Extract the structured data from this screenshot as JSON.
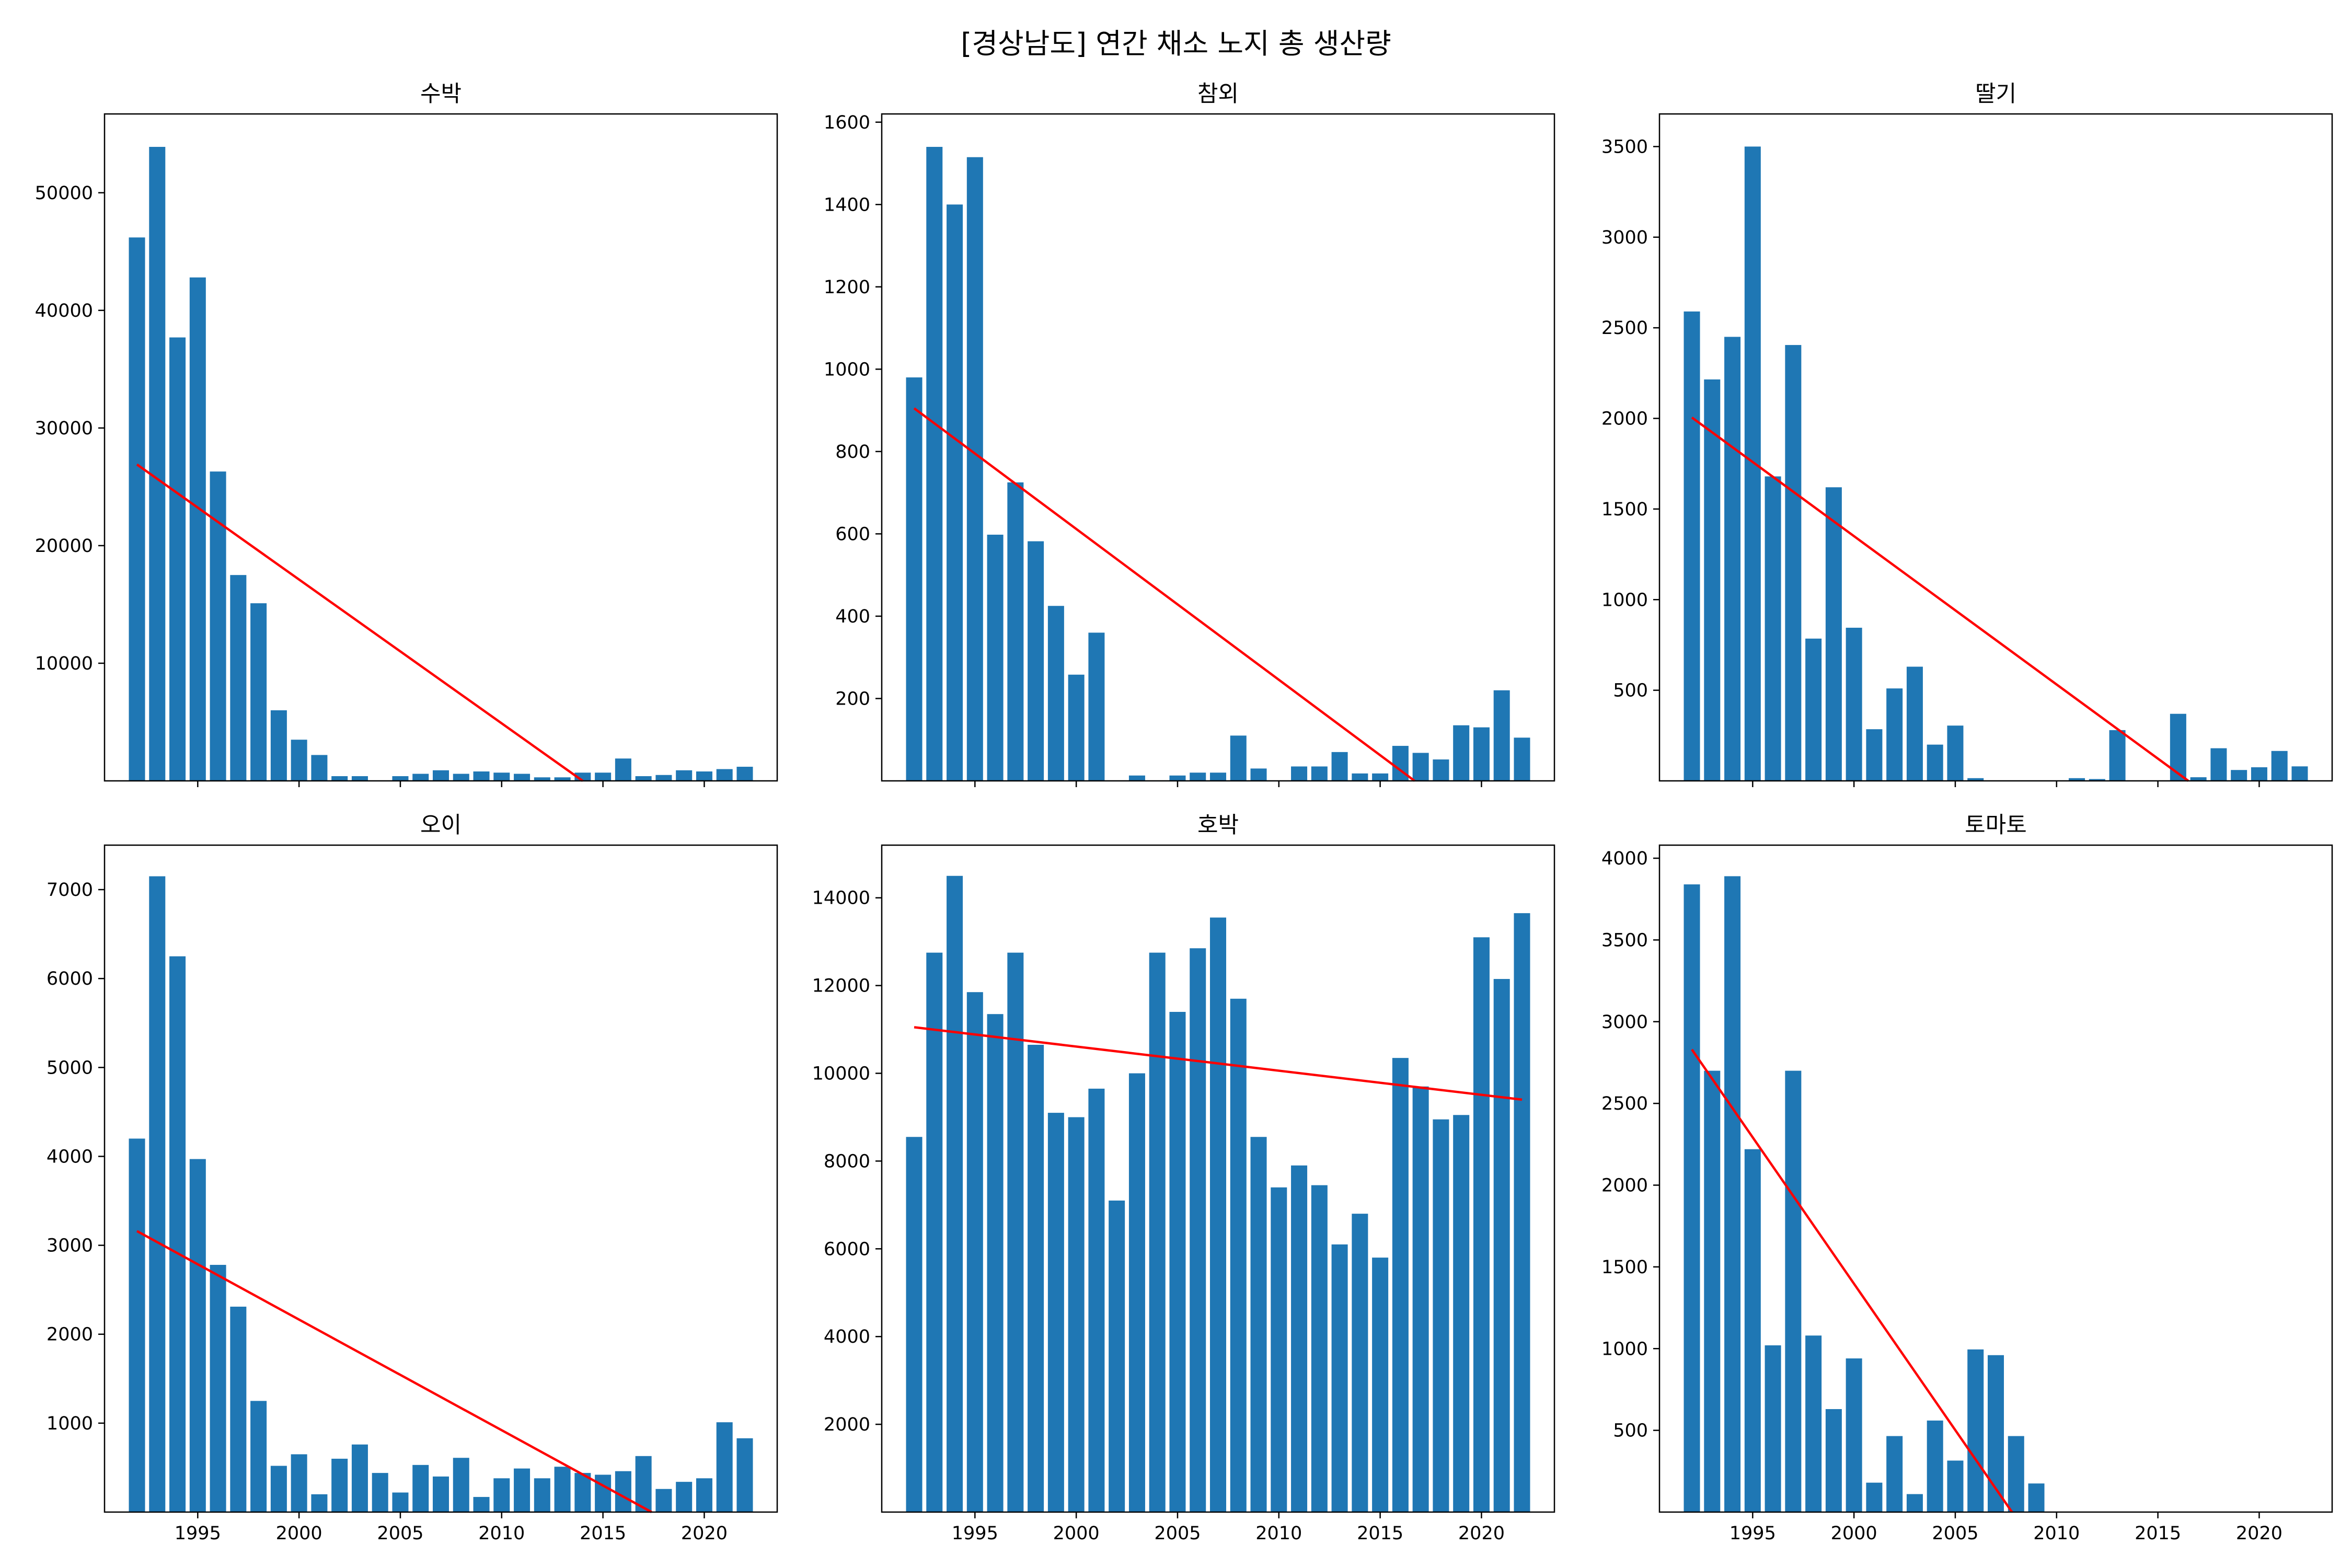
{
  "figure": {
    "title": "[경상남도] 연간 채소 노지 총 생산량"
  },
  "style": {
    "bar_color": "#1f77b4",
    "trend_color": "#ff0000",
    "axis_color": "#000000"
  },
  "chart_data": [
    {
      "type": "bar",
      "title": "수박",
      "x": [
        1992,
        1993,
        1994,
        1995,
        1996,
        1997,
        1998,
        1999,
        2000,
        2001,
        2002,
        2003,
        2004,
        2005,
        2006,
        2007,
        2008,
        2009,
        2010,
        2011,
        2012,
        2013,
        2014,
        2015,
        2016,
        2017,
        2018,
        2019,
        2020,
        2021,
        2022
      ],
      "values": [
        46200,
        53900,
        37700,
        42800,
        26300,
        17500,
        15100,
        6000,
        3500,
        2200,
        400,
        400,
        0,
        400,
        600,
        900,
        600,
        800,
        700,
        600,
        300,
        300,
        700,
        700,
        1900,
        400,
        500,
        900,
        800,
        1000,
        1200
      ],
      "trend": {
        "x": [
          1992,
          2014
        ],
        "y": [
          26900,
          0
        ]
      },
      "ylim": [
        0,
        56700
      ],
      "yticks": [
        10000,
        20000,
        30000,
        40000,
        50000
      ],
      "xticks": [
        1995,
        2000,
        2005,
        2010,
        2015,
        2020
      ],
      "xlim": [
        1990.4,
        2023.6
      ],
      "show_xtick_labels": false,
      "xlabel": "",
      "ylabel": "",
      "grid": false
    },
    {
      "type": "bar",
      "title": "참외",
      "x": [
        1992,
        1993,
        1994,
        1995,
        1996,
        1997,
        1998,
        1999,
        2000,
        2001,
        2002,
        2003,
        2004,
        2005,
        2006,
        2007,
        2008,
        2009,
        2010,
        2011,
        2012,
        2013,
        2014,
        2015,
        2016,
        2017,
        2018,
        2019,
        2020,
        2021,
        2022
      ],
      "values": [
        980,
        1540,
        1400,
        1515,
        598,
        725,
        582,
        425,
        258,
        360,
        0,
        13,
        0,
        13,
        20,
        20,
        110,
        30,
        0,
        35,
        35,
        70,
        18,
        18,
        85,
        68,
        52,
        135,
        130,
        220,
        105
      ],
      "trend": {
        "x": [
          1992,
          2016.7
        ],
        "y": [
          905,
          0
        ]
      },
      "ylim": [
        0,
        1620
      ],
      "yticks": [
        200,
        400,
        600,
        800,
        1000,
        1200,
        1400,
        1600
      ],
      "xticks": [
        1995,
        2000,
        2005,
        2010,
        2015,
        2020
      ],
      "xlim": [
        1990.4,
        2023.6
      ],
      "show_xtick_labels": false,
      "xlabel": "",
      "ylabel": "",
      "grid": false
    },
    {
      "type": "bar",
      "title": "딸기",
      "x": [
        1992,
        1993,
        1994,
        1995,
        1996,
        1997,
        1998,
        1999,
        2000,
        2001,
        2002,
        2003,
        2004,
        2005,
        2006,
        2007,
        2008,
        2009,
        2010,
        2011,
        2012,
        2013,
        2014,
        2015,
        2016,
        2017,
        2018,
        2019,
        2020,
        2021,
        2022
      ],
      "values": [
        2590,
        2215,
        2450,
        3500,
        1680,
        2405,
        785,
        1620,
        845,
        285,
        510,
        630,
        200,
        305,
        15,
        0,
        0,
        0,
        0,
        15,
        10,
        280,
        0,
        0,
        370,
        20,
        180,
        60,
        75,
        165,
        80
      ],
      "trend": {
        "x": [
          1992,
          2016.5
        ],
        "y": [
          2005,
          0
        ]
      },
      "ylim": [
        0,
        3680
      ],
      "yticks": [
        500,
        1000,
        1500,
        2000,
        2500,
        3000,
        3500
      ],
      "xticks": [
        1995,
        2000,
        2005,
        2010,
        2015,
        2020
      ],
      "xlim": [
        1990.4,
        2023.6
      ],
      "show_xtick_labels": false,
      "xlabel": "",
      "ylabel": "",
      "grid": false
    },
    {
      "type": "bar",
      "title": "오이",
      "x": [
        1992,
        1993,
        1994,
        1995,
        1996,
        1997,
        1998,
        1999,
        2000,
        2001,
        2002,
        2003,
        2004,
        2005,
        2006,
        2007,
        2008,
        2009,
        2010,
        2011,
        2012,
        2013,
        2014,
        2015,
        2016,
        2017,
        2018,
        2019,
        2020,
        2021,
        2022
      ],
      "values": [
        4200,
        7150,
        6250,
        3970,
        2780,
        2310,
        1250,
        520,
        650,
        200,
        600,
        760,
        440,
        220,
        530,
        400,
        610,
        170,
        380,
        490,
        380,
        510,
        440,
        420,
        460,
        630,
        260,
        340,
        380,
        1010,
        830
      ],
      "trend": {
        "x": [
          1992,
          2017.4
        ],
        "y": [
          3160,
          0
        ]
      },
      "ylim": [
        0,
        7500
      ],
      "yticks": [
        1000,
        2000,
        3000,
        4000,
        5000,
        6000,
        7000
      ],
      "xticks": [
        1995,
        2000,
        2005,
        2010,
        2015,
        2020
      ],
      "xlim": [
        1990.4,
        2023.6
      ],
      "show_xtick_labels": true,
      "xlabel": "",
      "ylabel": "",
      "grid": false
    },
    {
      "type": "bar",
      "title": "호박",
      "x": [
        1992,
        1993,
        1994,
        1995,
        1996,
        1997,
        1998,
        1999,
        2000,
        2001,
        2002,
        2003,
        2004,
        2005,
        2006,
        2007,
        2008,
        2009,
        2010,
        2011,
        2012,
        2013,
        2014,
        2015,
        2016,
        2017,
        2018,
        2019,
        2020,
        2021,
        2022
      ],
      "values": [
        8550,
        12750,
        14500,
        11850,
        11350,
        12750,
        10650,
        9100,
        9000,
        9650,
        7100,
        10000,
        12750,
        11400,
        12850,
        13550,
        11700,
        8550,
        7400,
        7900,
        7450,
        6100,
        6800,
        5800,
        10350,
        9700,
        8950,
        9050,
        13100,
        12150,
        13650
      ],
      "trend": {
        "x": [
          1992,
          2022
        ],
        "y": [
          11050,
          9400
        ]
      },
      "ylim": [
        0,
        15200
      ],
      "yticks": [
        2000,
        4000,
        6000,
        8000,
        10000,
        12000,
        14000
      ],
      "xticks": [
        1995,
        2000,
        2005,
        2010,
        2015,
        2020
      ],
      "xlim": [
        1990.4,
        2023.6
      ],
      "show_xtick_labels": true,
      "xlabel": "",
      "ylabel": "",
      "grid": false
    },
    {
      "type": "bar",
      "title": "토마토",
      "x": [
        1992,
        1993,
        1994,
        1995,
        1996,
        1997,
        1998,
        1999,
        2000,
        2001,
        2002,
        2003,
        2004,
        2005,
        2006,
        2007,
        2008,
        2009,
        2010,
        2011,
        2012,
        2013,
        2014,
        2015,
        2016,
        2017,
        2018,
        2019,
        2020,
        2021,
        2022
      ],
      "values": [
        3840,
        2700,
        3890,
        2220,
        1020,
        2700,
        1080,
        630,
        940,
        180,
        465,
        110,
        560,
        315,
        995,
        960,
        465,
        175,
        0,
        0,
        0,
        0,
        0,
        0,
        0,
        0,
        0,
        0,
        0,
        0,
        0
      ],
      "trend": {
        "x": [
          1992,
          2007.8
        ],
        "y": [
          2830,
          0
        ]
      },
      "ylim": [
        0,
        4080
      ],
      "yticks": [
        500,
        1000,
        1500,
        2000,
        2500,
        3000,
        3500,
        4000
      ],
      "xticks": [
        1995,
        2000,
        2005,
        2010,
        2015,
        2020
      ],
      "xlim": [
        1990.4,
        2023.6
      ],
      "show_xtick_labels": true,
      "xlabel": "",
      "ylabel": "",
      "grid": false
    }
  ]
}
